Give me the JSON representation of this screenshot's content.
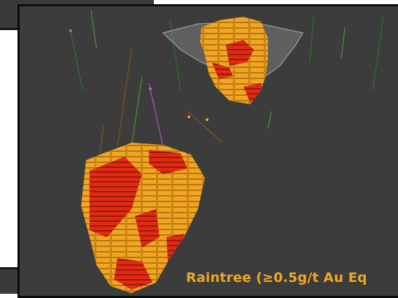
{
  "caption": {
    "text": "Raintree (≥0.5g/t Au Eq",
    "color": "#f0a623"
  },
  "scene": {
    "background": "#3c3c3c",
    "grade_colors": {
      "high": "#e02a12",
      "medium": "#f0a623"
    },
    "pit_shell_color": "#b9b9b9",
    "drillhole_colors": [
      "#2d7d2d",
      "#4f9d3a",
      "#8a5a2a",
      "#c35bd0"
    ]
  }
}
